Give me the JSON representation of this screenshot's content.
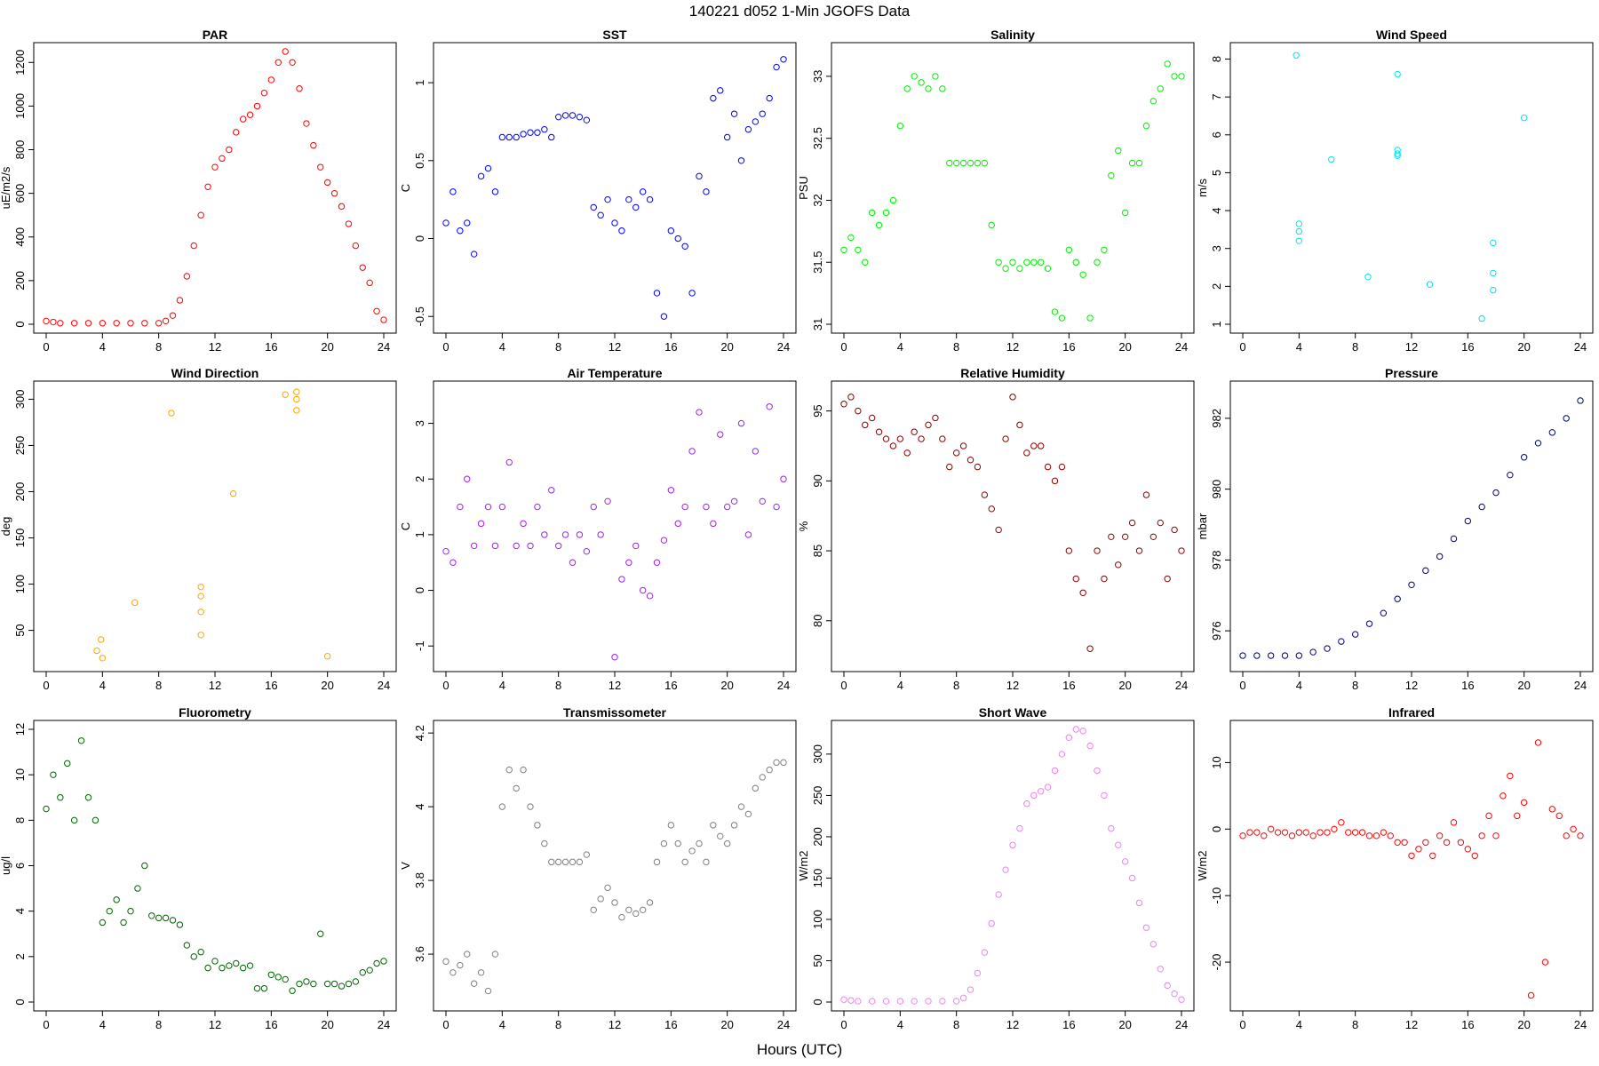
{
  "figure": {
    "title": "140221    d052    1-Min  JGOFS Data",
    "xlabel": "Hours (UTC)"
  },
  "chart_data": [
    {
      "type": "scatter",
      "title": "PAR",
      "ylabel": "uE/m2/s",
      "color": "#ff0000",
      "xlim": [
        0,
        24
      ],
      "ylim": [
        0,
        1250
      ],
      "xticks": [
        0,
        4,
        8,
        12,
        16,
        20,
        24
      ],
      "yticks": [
        0,
        200,
        400,
        600,
        800,
        1000,
        1200
      ],
      "x": [
        0,
        0.5,
        1,
        2,
        3,
        4,
        5,
        6,
        7,
        8,
        8.5,
        9,
        9.5,
        10,
        10.5,
        11,
        11.5,
        12,
        12.5,
        13,
        13.5,
        14,
        14.5,
        15,
        15.5,
        16,
        16.5,
        17,
        17.5,
        18,
        18.5,
        19,
        19.5,
        20,
        20.5,
        21,
        21.5,
        22,
        22.5,
        23,
        23.5,
        24
      ],
      "y": [
        15,
        10,
        5,
        5,
        5,
        5,
        5,
        5,
        5,
        5,
        15,
        40,
        110,
        220,
        360,
        500,
        630,
        720,
        760,
        800,
        880,
        940,
        960,
        1000,
        1060,
        1120,
        1200,
        1250,
        1200,
        1080,
        920,
        820,
        720,
        650,
        600,
        540,
        460,
        360,
        260,
        190,
        60,
        20
      ]
    },
    {
      "type": "scatter",
      "title": "SST",
      "ylabel": "C",
      "color": "#0000ff",
      "xlim": [
        0,
        24
      ],
      "ylim": [
        -0.55,
        1.2
      ],
      "xticks": [
        0,
        4,
        8,
        12,
        16,
        20,
        24
      ],
      "yticks": [
        -0.5,
        0.0,
        0.5,
        1.0
      ],
      "x": [
        0,
        0.5,
        1,
        1.5,
        2,
        2.5,
        3,
        3.5,
        4,
        4.5,
        5,
        5.5,
        6,
        6.5,
        7,
        7.5,
        8,
        8.5,
        9,
        9.5,
        10,
        10.5,
        11,
        11.5,
        12,
        12.5,
        13,
        13.5,
        14,
        14.5,
        15,
        15.5,
        16,
        16.5,
        17,
        17.5,
        18,
        18.5,
        19,
        19.5,
        20,
        20.5,
        21,
        21.5,
        22,
        22.5,
        23,
        23.5,
        24
      ],
      "y": [
        0.1,
        0.3,
        0.05,
        0.1,
        -0.1,
        0.4,
        0.45,
        0.3,
        0.65,
        0.65,
        0.65,
        0.67,
        0.68,
        0.68,
        0.7,
        0.65,
        0.78,
        0.79,
        0.79,
        0.78,
        0.76,
        0.2,
        0.15,
        0.25,
        0.1,
        0.05,
        0.25,
        0.2,
        0.3,
        0.25,
        -0.35,
        -0.5,
        0.05,
        0.0,
        -0.05,
        -0.35,
        0.4,
        0.3,
        0.9,
        0.95,
        0.65,
        0.8,
        0.5,
        0.7,
        0.75,
        0.8,
        0.9,
        1.1,
        1.15
      ]
    },
    {
      "type": "scatter",
      "title": "Salinity",
      "ylabel": "PSU",
      "color": "#00ee00",
      "xlim": [
        0,
        24
      ],
      "ylim": [
        31.0,
        33.2
      ],
      "xticks": [
        0,
        4,
        8,
        12,
        16,
        20,
        24
      ],
      "yticks": [
        31.0,
        31.5,
        32.0,
        32.5,
        33.0
      ],
      "x": [
        0,
        0.5,
        1,
        1.5,
        2,
        2.5,
        3,
        3.5,
        4,
        4.5,
        5,
        5.5,
        6,
        6.5,
        7,
        7.5,
        8,
        8.5,
        9,
        9.5,
        10,
        10.5,
        11,
        11.5,
        12,
        12.5,
        13,
        13.5,
        14,
        14.5,
        15,
        15.5,
        16,
        16.5,
        17,
        17.5,
        18,
        18.5,
        19,
        19.5,
        20,
        20.5,
        21,
        21.5,
        22,
        22.5,
        23,
        23.5,
        24
      ],
      "y": [
        31.6,
        31.7,
        31.6,
        31.5,
        31.9,
        31.8,
        31.9,
        32.0,
        32.6,
        32.9,
        33.0,
        32.95,
        32.9,
        33.0,
        32.9,
        32.3,
        32.3,
        32.3,
        32.3,
        32.3,
        32.3,
        31.8,
        31.5,
        31.45,
        31.5,
        31.45,
        31.5,
        31.5,
        31.5,
        31.45,
        31.1,
        31.05,
        31.6,
        31.5,
        31.4,
        31.05,
        31.5,
        31.6,
        32.2,
        32.4,
        31.9,
        32.3,
        32.3,
        32.6,
        32.8,
        32.9,
        33.1,
        33.0,
        33.0
      ]
    },
    {
      "type": "scatter",
      "title": "Wind Speed",
      "ylabel": "m/s",
      "color": "#00e5ee",
      "xlim": [
        0,
        24
      ],
      "ylim": [
        1,
        8.2
      ],
      "xticks": [
        0,
        4,
        8,
        12,
        16,
        20,
        24
      ],
      "yticks": [
        1,
        2,
        3,
        4,
        5,
        6,
        7,
        8
      ],
      "x": [
        3.8,
        4.0,
        4.0,
        4.0,
        6.3,
        8.9,
        11.0,
        11.0,
        11.0,
        11.0,
        13.3,
        17.0,
        17.8,
        17.8,
        17.8,
        20.0
      ],
      "y": [
        8.1,
        3.65,
        3.45,
        3.2,
        5.35,
        2.25,
        7.6,
        5.6,
        5.5,
        5.45,
        2.05,
        1.15,
        3.15,
        2.35,
        1.9,
        6.45
      ]
    },
    {
      "type": "scatter",
      "title": "Wind Direction",
      "ylabel": "deg",
      "color": "#ffa500",
      "xlim": [
        0,
        24
      ],
      "ylim": [
        15,
        310
      ],
      "xticks": [
        0,
        4,
        8,
        12,
        16,
        20,
        24
      ],
      "yticks": [
        50,
        100,
        150,
        200,
        250,
        300
      ],
      "x": [
        3.6,
        3.9,
        4.0,
        6.3,
        8.9,
        11.0,
        11.0,
        11.0,
        11.0,
        13.3,
        17.0,
        17.8,
        17.8,
        17.8,
        20.0
      ],
      "y": [
        28,
        40,
        20,
        80,
        285,
        97,
        87,
        70,
        45,
        198,
        305,
        308,
        300,
        288,
        22
      ]
    },
    {
      "type": "scatter",
      "title": "Air Temperature",
      "ylabel": "C",
      "color": "#a020f0",
      "xlim": [
        0,
        24
      ],
      "ylim": [
        -1.3,
        3.6
      ],
      "xticks": [
        0,
        4,
        8,
        12,
        16,
        20,
        24
      ],
      "yticks": [
        -1,
        0,
        1,
        2,
        3
      ],
      "x": [
        0,
        0.5,
        1,
        1.5,
        2,
        2.5,
        3,
        3.5,
        4,
        4.5,
        5,
        5.5,
        6,
        6.5,
        7,
        7.5,
        8,
        8.5,
        9,
        9.5,
        10,
        10.5,
        11,
        11.5,
        12,
        12.5,
        13,
        13.5,
        14,
        14.5,
        15,
        15.5,
        16,
        16.5,
        17,
        17.5,
        18,
        18.5,
        19,
        19.5,
        20,
        20.5,
        21,
        21.5,
        22,
        22.5,
        23,
        23.5,
        24
      ],
      "y": [
        0.7,
        0.5,
        1.5,
        2.0,
        0.8,
        1.2,
        1.5,
        0.8,
        1.5,
        2.3,
        0.8,
        1.2,
        0.8,
        1.5,
        1.0,
        1.8,
        0.8,
        1.0,
        0.5,
        1.0,
        0.7,
        1.5,
        1.0,
        1.6,
        -1.2,
        0.2,
        0.5,
        0.8,
        0.0,
        -0.1,
        0.5,
        0.9,
        1.8,
        1.2,
        1.5,
        2.5,
        3.2,
        1.5,
        1.2,
        2.8,
        1.5,
        1.6,
        3.0,
        1.0,
        2.5,
        1.6,
        3.3,
        1.5,
        2.0
      ]
    },
    {
      "type": "scatter",
      "title": "Relative Humidity",
      "ylabel": "%",
      "color": "#8b0000",
      "xlim": [
        0,
        24
      ],
      "ylim": [
        77,
        96.5
      ],
      "xticks": [
        0,
        4,
        8,
        12,
        16,
        20,
        24
      ],
      "yticks": [
        80,
        85,
        90,
        95
      ],
      "x": [
        0,
        0.5,
        1,
        1.5,
        2,
        2.5,
        3,
        3.5,
        4,
        4.5,
        5,
        5.5,
        6,
        6.5,
        7,
        7.5,
        8,
        8.5,
        9,
        9.5,
        10,
        10.5,
        11,
        11.5,
        12,
        12.5,
        13,
        13.5,
        14,
        14.5,
        15,
        15.5,
        16,
        16.5,
        17,
        17.5,
        18,
        18.5,
        19,
        19.5,
        20,
        20.5,
        21,
        21.5,
        22,
        22.5,
        23,
        23.5,
        24
      ],
      "y": [
        95.5,
        96,
        95,
        94,
        94.5,
        93.5,
        93,
        92.5,
        93,
        92,
        93.5,
        93,
        94,
        94.5,
        93,
        91,
        92,
        92.5,
        91.5,
        91,
        89,
        88,
        86.5,
        93,
        96,
        94,
        92,
        92.5,
        92.5,
        91,
        90,
        91,
        85,
        83,
        82,
        78,
        85,
        83,
        86,
        84,
        86,
        87,
        85,
        89,
        86,
        87,
        83,
        86.5,
        85
      ]
    },
    {
      "type": "scatter",
      "title": "Pressure",
      "ylabel": "mbar",
      "color": "#000080",
      "xlim": [
        0,
        24
      ],
      "ylim": [
        975.1,
        982.8
      ],
      "xticks": [
        0,
        4,
        8,
        12,
        16,
        20,
        24
      ],
      "yticks": [
        976,
        978,
        980,
        982
      ],
      "x": [
        0,
        1,
        2,
        3,
        4,
        5,
        6,
        7,
        8,
        9,
        10,
        11,
        12,
        13,
        14,
        15,
        16,
        17,
        18,
        19,
        20,
        21,
        22,
        23,
        24
      ],
      "y": [
        975.3,
        975.3,
        975.3,
        975.3,
        975.3,
        975.4,
        975.5,
        975.7,
        975.9,
        976.2,
        976.5,
        976.9,
        977.3,
        977.7,
        978.1,
        978.6,
        979.1,
        979.5,
        979.9,
        980.4,
        980.9,
        981.3,
        981.6,
        982.0,
        982.5
      ]
    },
    {
      "type": "scatter",
      "title": "Fluorometry",
      "ylabel": "ug/l",
      "color": "#006400",
      "xlim": [
        0,
        24
      ],
      "ylim": [
        0,
        12
      ],
      "xticks": [
        0,
        4,
        8,
        12,
        16,
        20,
        24
      ],
      "yticks": [
        0,
        2,
        4,
        6,
        8,
        10,
        12
      ],
      "x": [
        0,
        0.5,
        1,
        1.5,
        2,
        2.5,
        3,
        3.5,
        4,
        4.5,
        5,
        5.5,
        6,
        6.5,
        7,
        7.5,
        8,
        8.5,
        9,
        9.5,
        10,
        10.5,
        11,
        11.5,
        12,
        12.5,
        13,
        13.5,
        14,
        14.5,
        15,
        15.5,
        16,
        16.5,
        17,
        17.5,
        18,
        18.5,
        19,
        19.5,
        20,
        20.5,
        21,
        21.5,
        22,
        22.5,
        23,
        23.5,
        24
      ],
      "y": [
        8.5,
        10,
        9,
        10.5,
        8,
        11.5,
        9,
        8,
        3.5,
        4,
        4.5,
        3.5,
        4,
        5,
        6,
        3.8,
        3.7,
        3.7,
        3.6,
        3.4,
        2.5,
        2.0,
        2.2,
        1.5,
        1.8,
        1.5,
        1.6,
        1.7,
        1.5,
        1.6,
        0.6,
        0.6,
        1.2,
        1.1,
        1.0,
        0.5,
        0.8,
        0.9,
        0.8,
        3.0,
        0.8,
        0.8,
        0.7,
        0.8,
        0.9,
        1.3,
        1.4,
        1.7,
        1.8
      ]
    },
    {
      "type": "scatter",
      "title": "Transmissometer",
      "ylabel": "V",
      "color": "#808080",
      "xlim": [
        0,
        24
      ],
      "ylim": [
        3.47,
        4.21
      ],
      "xticks": [
        0,
        4,
        8,
        12,
        16,
        20,
        24
      ],
      "yticks": [
        3.6,
        3.8,
        4.0,
        4.2
      ],
      "x": [
        0,
        0.5,
        1,
        1.5,
        2,
        2.5,
        3,
        3.5,
        4,
        4.5,
        5,
        5.5,
        6,
        6.5,
        7,
        7.5,
        8,
        8.5,
        9,
        9.5,
        10,
        10.5,
        11,
        11.5,
        12,
        12.5,
        13,
        13.5,
        14,
        14.5,
        15,
        15.5,
        16,
        16.5,
        17,
        17.5,
        18,
        18.5,
        19,
        19.5,
        20,
        20.5,
        21,
        21.5,
        22,
        22.5,
        23,
        23.5,
        24
      ],
      "y": [
        3.58,
        3.55,
        3.57,
        3.6,
        3.52,
        3.55,
        3.5,
        3.6,
        4.0,
        4.1,
        4.05,
        4.1,
        4.0,
        3.95,
        3.9,
        3.85,
        3.85,
        3.85,
        3.85,
        3.85,
        3.87,
        3.72,
        3.75,
        3.78,
        3.74,
        3.7,
        3.72,
        3.71,
        3.72,
        3.74,
        3.85,
        3.9,
        3.95,
        3.9,
        3.85,
        3.88,
        3.9,
        3.85,
        3.95,
        3.92,
        3.9,
        3.95,
        4.0,
        3.98,
        4.05,
        4.08,
        4.1,
        4.12,
        4.12
      ]
    },
    {
      "type": "scatter",
      "title": "Short Wave",
      "ylabel": "W/m2",
      "color": "#ee82ee",
      "xlim": [
        0,
        24
      ],
      "ylim": [
        0,
        330
      ],
      "xticks": [
        0,
        4,
        8,
        12,
        16,
        20,
        24
      ],
      "yticks": [
        0,
        50,
        100,
        150,
        200,
        250,
        300
      ],
      "x": [
        0,
        0.5,
        1,
        2,
        3,
        4,
        5,
        6,
        7,
        8,
        8.5,
        9,
        9.5,
        10,
        10.5,
        11,
        11.5,
        12,
        12.5,
        13,
        13.5,
        14,
        14.5,
        15,
        15.5,
        16,
        16.5,
        17,
        17.5,
        18,
        18.5,
        19,
        19.5,
        20,
        20.5,
        21,
        21.5,
        22,
        22.5,
        23,
        23.5,
        24
      ],
      "y": [
        3,
        2,
        1,
        1,
        1,
        1,
        1,
        1,
        1,
        1,
        5,
        15,
        35,
        60,
        95,
        130,
        160,
        190,
        210,
        240,
        250,
        255,
        260,
        280,
        300,
        320,
        330,
        328,
        310,
        280,
        250,
        210,
        190,
        170,
        150,
        120,
        90,
        70,
        40,
        20,
        10,
        3
      ]
    },
    {
      "type": "scatter",
      "title": "Infrared",
      "ylabel": "W/m2",
      "color": "#ff0000",
      "xlim": [
        0,
        24
      ],
      "ylim": [
        -26,
        15
      ],
      "xticks": [
        0,
        4,
        8,
        12,
        16,
        20,
        24
      ],
      "yticks": [
        -20,
        -10,
        0,
        10
      ],
      "x": [
        0,
        0.5,
        1,
        1.5,
        2,
        2.5,
        3,
        3.5,
        4,
        4.5,
        5,
        5.5,
        6,
        6.5,
        7,
        7.5,
        8,
        8.5,
        9,
        9.5,
        10,
        10.5,
        11,
        11.5,
        12,
        12.5,
        13,
        13.5,
        14,
        14.5,
        15,
        15.5,
        16,
        16.5,
        17,
        17.5,
        18,
        18.5,
        19,
        19.5,
        20,
        20.5,
        21,
        21.5,
        22,
        22.5,
        23,
        23.5,
        24
      ],
      "y": [
        -1,
        -0.5,
        -0.5,
        -1,
        0,
        -0.5,
        -0.5,
        -1,
        -0.5,
        -0.5,
        -1,
        -0.5,
        -0.5,
        0,
        1,
        -0.5,
        -0.5,
        -0.5,
        -1,
        -1,
        -0.5,
        -1,
        -2,
        -2,
        -4,
        -3,
        -2,
        -4,
        -1,
        -2,
        1,
        -2,
        -3,
        -4,
        -1,
        2,
        -1,
        5,
        8,
        2,
        4,
        -25,
        13,
        -20,
        3,
        2,
        -1,
        0,
        -1
      ]
    }
  ]
}
